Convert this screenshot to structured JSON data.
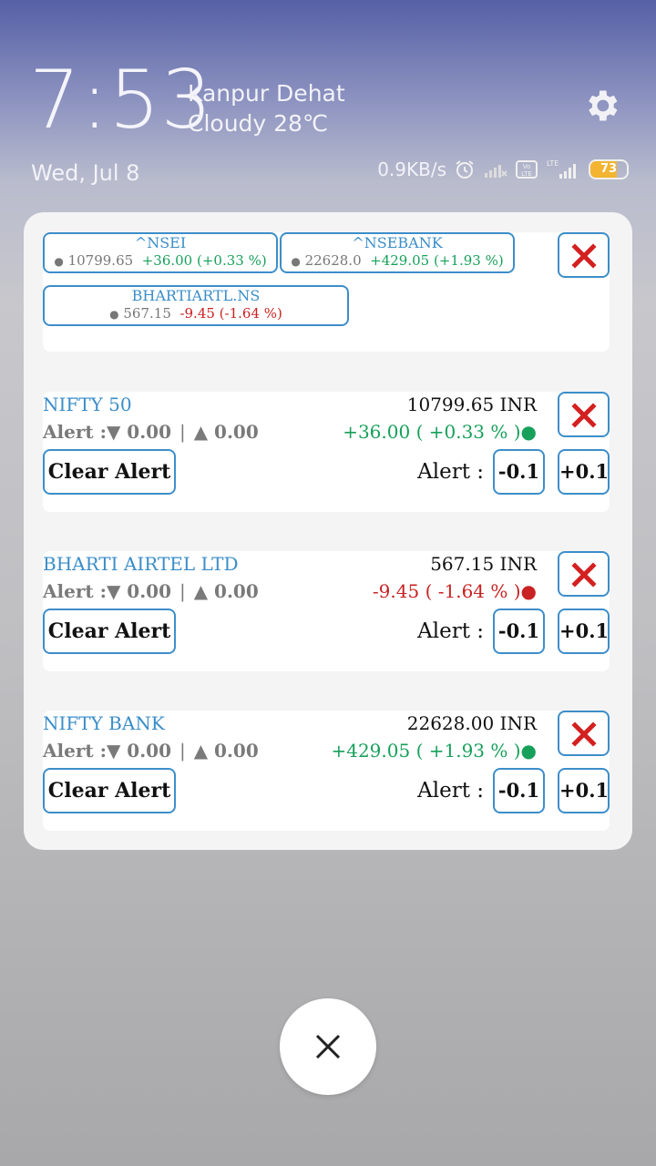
{
  "lockscreen": {
    "time": "7:53",
    "city": "Kanpur Dehat",
    "weather": "Cloudy 28℃",
    "date": "Wed, Jul 8",
    "network_speed": "0.9KB/s",
    "battery": "73",
    "icons": [
      "gear-icon",
      "alarm-icon",
      "signal-icon",
      "volte-icon",
      "lte-signal-icon",
      "battery-icon"
    ]
  },
  "tickers": [
    {
      "symbol": "^NSEI",
      "price": "10799.65",
      "change": "+36.00 (+0.33 %)"
    },
    {
      "symbol": "^NSEBANK",
      "price": "22628.0",
      "change": "+429.05 (+1.93 %)"
    },
    {
      "symbol": "BHARTIARTL.NS",
      "price": "567.15",
      "change": "-9.45 (-1.64 %)"
    }
  ],
  "stocks": [
    {
      "name": "NIFTY 50",
      "price": "10799.65 INR",
      "alert_text": "Alert :▼ 0.00",
      "sep": "|",
      "alert_up": "▲ 0.00",
      "change": "+36.00  ( +0.33 % )●"
    },
    {
      "name": "BHARTI AIRTEL LTD",
      "price": "567.15 INR",
      "alert_text": "Alert :▼ 0.00",
      "sep": "|",
      "alert_up": "▲ 0.00",
      "change": "-9.45  ( -1.64 % )●"
    },
    {
      "name": "NIFTY BANK",
      "price": "22628.00 INR",
      "alert_text": "Alert :▼ 0.00",
      "sep": "|",
      "alert_up": "▲ 0.00",
      "change": "+429.05  ( +1.93 % )●"
    }
  ],
  "labels": {
    "clear_alert": "Clear Alert",
    "alert": "Alert :",
    "minus": "-0.1",
    "plus": "+0.1",
    "dot": "●"
  },
  "colors": {
    "accent": "#3d8ec9",
    "positive": "#17a05a",
    "negative": "#c82222",
    "close_x": "#d42020"
  }
}
